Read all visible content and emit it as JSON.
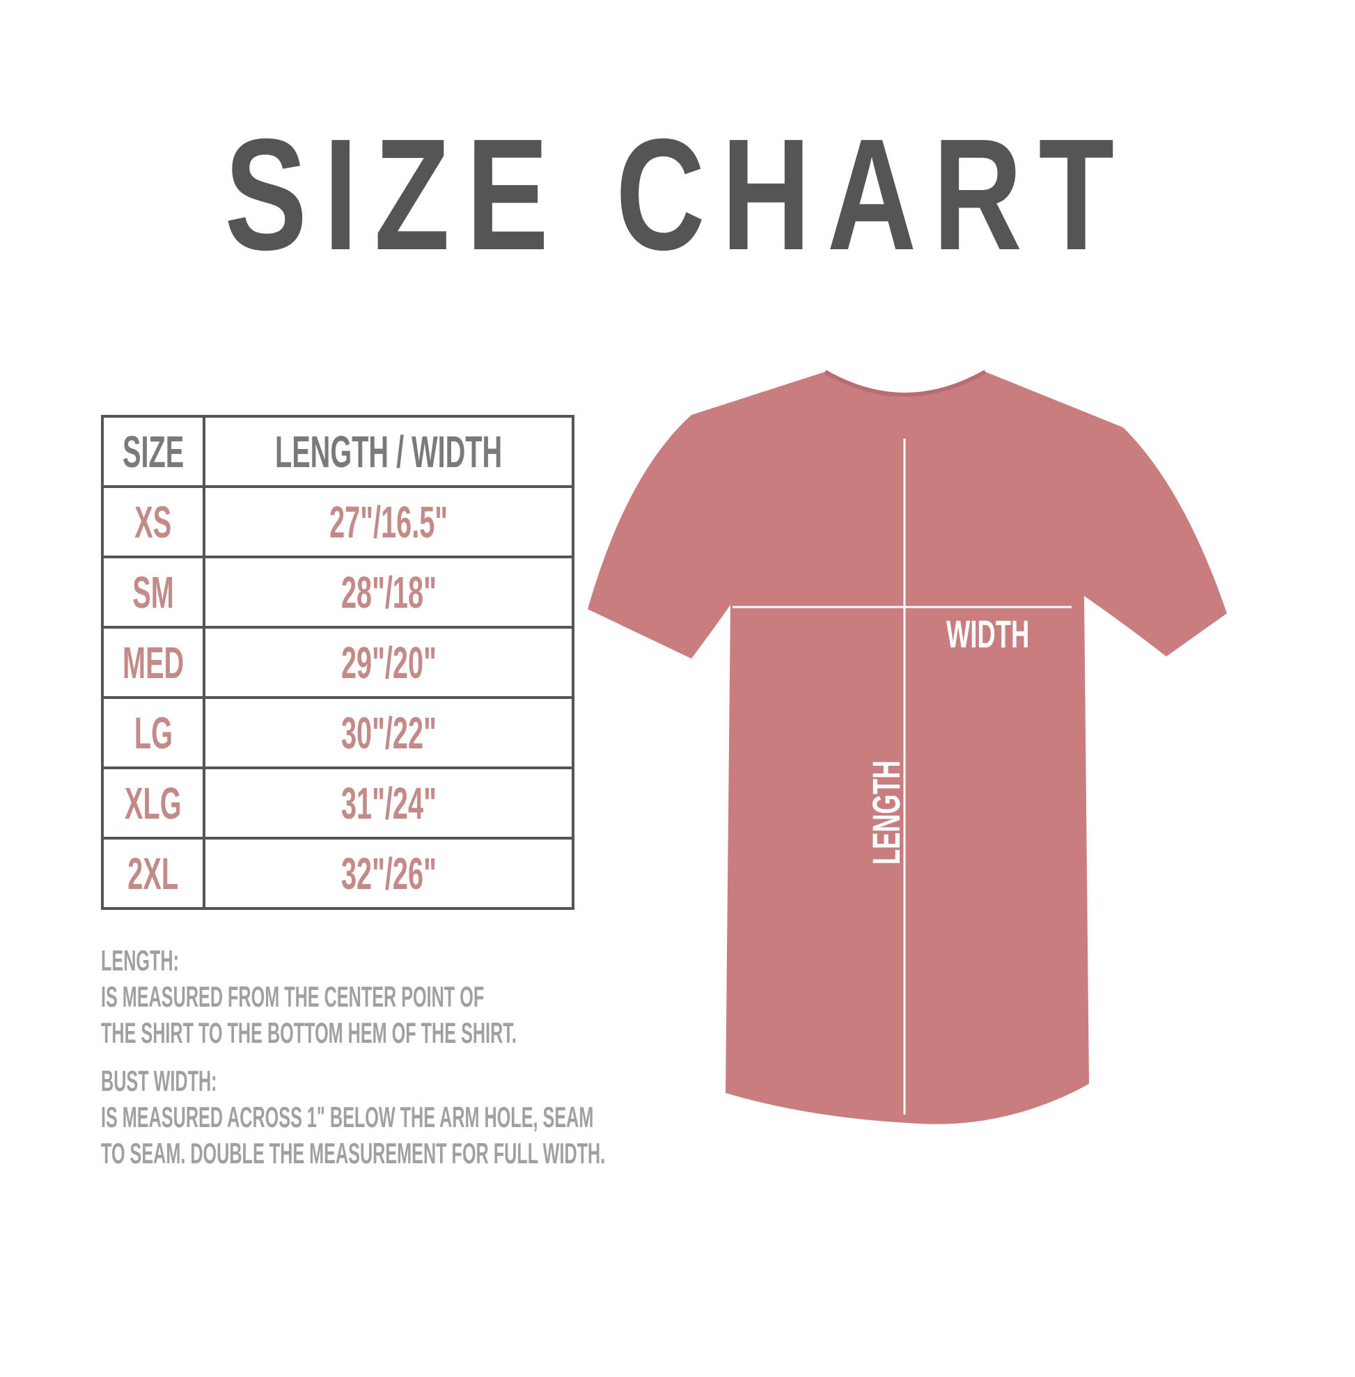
{
  "title": "SIZE CHART",
  "table": {
    "headers": [
      "SIZE",
      "LENGTH / WIDTH"
    ],
    "rows": [
      {
        "size": "XS",
        "value": "27\"/16.5\""
      },
      {
        "size": "SM",
        "value": "28\"/18\""
      },
      {
        "size": "MED",
        "value": "29\"/20\""
      },
      {
        "size": "LG",
        "value": "30\"/22\""
      },
      {
        "size": "XLG",
        "value": "31\"/24\""
      },
      {
        "size": "2XL",
        "value": "32\"/26\""
      }
    ]
  },
  "notes": {
    "length_heading": "LENGTH:",
    "length_lines": [
      "IS MEASURED FROM THE CENTER POINT OF",
      "THE SHIRT TO THE BOTTOM HEM OF THE SHIRT."
    ],
    "width_heading": "BUST WIDTH:",
    "width_lines": [
      "IS MEASURED ACROSS  1\" BELOW THE ARM HOLE, SEAM",
      "TO SEAM. DOUBLE THE MEASUREMENT FOR FULL WIDTH."
    ]
  },
  "shirt": {
    "width_label": "WIDTH",
    "length_label": "LENGTH",
    "color": "#c97d7f"
  },
  "colors": {
    "title": "#555555",
    "value_text": "#c48a88",
    "header_text": "#7a7a7a",
    "notes_text": "#a0a0a0"
  }
}
